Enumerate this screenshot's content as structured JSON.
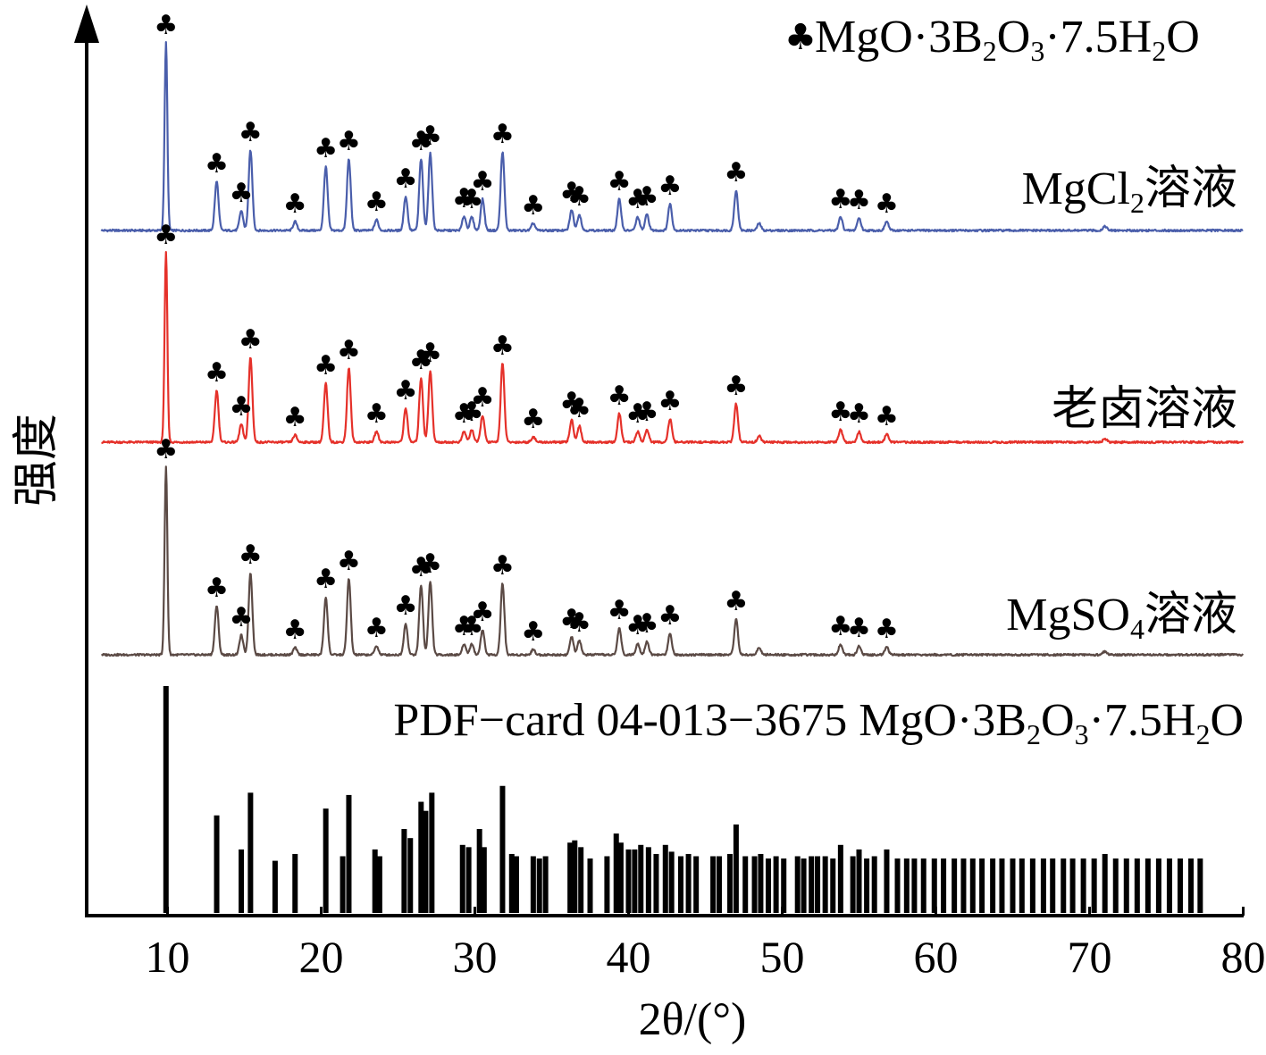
{
  "chart_data": {
    "type": "line",
    "title": "",
    "xlabel": "2θ/(°)",
    "ylabel": "强度",
    "xlim": [
      5,
      80
    ],
    "xticks": [
      10,
      20,
      30,
      40,
      50,
      60,
      70,
      80
    ],
    "xtick_labels": [
      "10",
      "20",
      "30",
      "40",
      "50",
      "60",
      "70",
      "80"
    ],
    "legend": {
      "symbol": "♣",
      "label_parts": [
        "MgO·3B",
        "2",
        "O",
        "3",
        "·7.5H",
        "2",
        "O"
      ]
    },
    "peak_marker_symbol": "♣",
    "peak_marker_2theta": [
      9.9,
      13.2,
      14.8,
      15.4,
      18.3,
      20.3,
      21.8,
      23.6,
      25.5,
      26.5,
      27.1,
      29.3,
      29.8,
      30.5,
      31.8,
      33.8,
      36.3,
      36.8,
      39.4,
      40.6,
      41.2,
      42.7,
      47.0,
      53.8,
      55.0,
      56.8
    ],
    "series": [
      {
        "name": "MgCl2溶液",
        "label_parts": [
          "MgCl",
          "2",
          "溶液"
        ],
        "color": "#4a5eab",
        "peaks": [
          [
            9.9,
            210
          ],
          [
            13.2,
            55
          ],
          [
            14.8,
            22
          ],
          [
            15.4,
            90
          ],
          [
            18.3,
            10
          ],
          [
            20.3,
            72
          ],
          [
            21.8,
            80
          ],
          [
            23.6,
            12
          ],
          [
            25.5,
            38
          ],
          [
            26.5,
            80
          ],
          [
            27.1,
            86
          ],
          [
            29.3,
            16
          ],
          [
            29.8,
            15
          ],
          [
            30.5,
            35
          ],
          [
            31.8,
            88
          ],
          [
            33.8,
            8
          ],
          [
            36.3,
            23
          ],
          [
            36.8,
            18
          ],
          [
            39.4,
            35
          ],
          [
            40.6,
            15
          ],
          [
            41.2,
            18
          ],
          [
            42.7,
            30
          ],
          [
            47.0,
            45
          ],
          [
            48.5,
            8
          ],
          [
            53.8,
            15
          ],
          [
            55.0,
            14
          ],
          [
            56.8,
            10
          ],
          [
            71.0,
            5
          ]
        ]
      },
      {
        "name": "老卤溶液",
        "label_parts": [
          "老卤溶液"
        ],
        "color": "#e5312a",
        "peaks": [
          [
            9.9,
            212
          ],
          [
            13.2,
            58
          ],
          [
            14.8,
            20
          ],
          [
            15.4,
            95
          ],
          [
            18.3,
            8
          ],
          [
            20.3,
            66
          ],
          [
            21.8,
            83
          ],
          [
            23.6,
            12
          ],
          [
            25.5,
            38
          ],
          [
            26.5,
            72
          ],
          [
            27.1,
            80
          ],
          [
            29.3,
            12
          ],
          [
            29.8,
            14
          ],
          [
            30.5,
            30
          ],
          [
            31.8,
            88
          ],
          [
            33.8,
            6
          ],
          [
            36.3,
            25
          ],
          [
            36.8,
            18
          ],
          [
            39.4,
            32
          ],
          [
            40.6,
            12
          ],
          [
            41.2,
            14
          ],
          [
            42.7,
            26
          ],
          [
            47.0,
            43
          ],
          [
            48.5,
            7
          ],
          [
            53.8,
            14
          ],
          [
            55.0,
            12
          ],
          [
            56.8,
            9
          ],
          [
            71.0,
            4
          ]
        ]
      },
      {
        "name": "MgSO4溶液",
        "label_parts": [
          "MgSO",
          "4",
          "溶液"
        ],
        "color": "#5b4a45",
        "peaks": [
          [
            9.9,
            210
          ],
          [
            13.2,
            55
          ],
          [
            14.8,
            22
          ],
          [
            15.4,
            92
          ],
          [
            18.3,
            8
          ],
          [
            20.3,
            65
          ],
          [
            21.8,
            85
          ],
          [
            23.6,
            10
          ],
          [
            25.5,
            35
          ],
          [
            26.5,
            78
          ],
          [
            27.1,
            82
          ],
          [
            29.3,
            12
          ],
          [
            29.8,
            12
          ],
          [
            30.5,
            28
          ],
          [
            31.8,
            80
          ],
          [
            33.8,
            6
          ],
          [
            36.3,
            20
          ],
          [
            36.8,
            16
          ],
          [
            39.4,
            30
          ],
          [
            40.6,
            13
          ],
          [
            41.2,
            15
          ],
          [
            42.7,
            24
          ],
          [
            47.0,
            40
          ],
          [
            48.5,
            8
          ],
          [
            53.8,
            12
          ],
          [
            55.0,
            10
          ],
          [
            56.8,
            9
          ],
          [
            71.0,
            4
          ]
        ]
      }
    ],
    "reference": {
      "name": "PDF-card 04-013-3675 MgO·3B2O3·7.5H2O",
      "label_parts": [
        "PDF−card 04-013−3675 MgO·3B",
        "2",
        "O",
        "3",
        "·7.5H",
        "2",
        "O"
      ],
      "sticks": [
        [
          9.9,
          100
        ],
        [
          13.2,
          43
        ],
        [
          14.8,
          28
        ],
        [
          15.4,
          53
        ],
        [
          17.0,
          23
        ],
        [
          18.3,
          26
        ],
        [
          20.3,
          46
        ],
        [
          21.4,
          25
        ],
        [
          21.8,
          52
        ],
        [
          23.5,
          28
        ],
        [
          23.8,
          25
        ],
        [
          25.4,
          37
        ],
        [
          25.8,
          33
        ],
        [
          26.5,
          49
        ],
        [
          26.8,
          45
        ],
        [
          27.2,
          53
        ],
        [
          29.2,
          30
        ],
        [
          29.6,
          29
        ],
        [
          30.3,
          37
        ],
        [
          30.6,
          29
        ],
        [
          31.8,
          56
        ],
        [
          32.4,
          26
        ],
        [
          32.7,
          25
        ],
        [
          33.8,
          25
        ],
        [
          34.2,
          24
        ],
        [
          34.6,
          25
        ],
        [
          36.2,
          31
        ],
        [
          36.5,
          32
        ],
        [
          36.9,
          29
        ],
        [
          37.5,
          24
        ],
        [
          38.6,
          25
        ],
        [
          39.2,
          35
        ],
        [
          39.5,
          31
        ],
        [
          40.0,
          28
        ],
        [
          40.4,
          28
        ],
        [
          40.8,
          30
        ],
        [
          41.3,
          29
        ],
        [
          41.8,
          26
        ],
        [
          42.4,
          30
        ],
        [
          42.8,
          27
        ],
        [
          43.4,
          25
        ],
        [
          43.9,
          26
        ],
        [
          44.4,
          25
        ],
        [
          45.5,
          25
        ],
        [
          45.9,
          25
        ],
        [
          46.6,
          26
        ],
        [
          47.0,
          39
        ],
        [
          47.6,
          25
        ],
        [
          48.2,
          25
        ],
        [
          48.6,
          26
        ],
        [
          49.1,
          24
        ],
        [
          49.6,
          25
        ],
        [
          50.1,
          24
        ],
        [
          51.0,
          25
        ],
        [
          51.4,
          24
        ],
        [
          51.9,
          25
        ],
        [
          52.3,
          25
        ],
        [
          52.8,
          25
        ],
        [
          53.3,
          24
        ],
        [
          53.8,
          30
        ],
        [
          54.6,
          25
        ],
        [
          55.0,
          28
        ],
        [
          55.5,
          24
        ],
        [
          56.0,
          25
        ],
        [
          56.8,
          28
        ],
        [
          57.5,
          24
        ],
        [
          58.1,
          24
        ],
        [
          58.6,
          24
        ],
        [
          59.2,
          24
        ],
        [
          59.9,
          24
        ],
        [
          60.5,
          24
        ],
        [
          61.2,
          24
        ],
        [
          61.8,
          24
        ],
        [
          62.4,
          24
        ],
        [
          63.0,
          24
        ],
        [
          63.7,
          24
        ],
        [
          64.3,
          24
        ],
        [
          65.0,
          24
        ],
        [
          65.6,
          24
        ],
        [
          66.3,
          24
        ],
        [
          67.0,
          24
        ],
        [
          67.6,
          24
        ],
        [
          68.3,
          24
        ],
        [
          68.9,
          24
        ],
        [
          69.6,
          24
        ],
        [
          70.3,
          24
        ],
        [
          71.0,
          26
        ],
        [
          71.7,
          24
        ],
        [
          72.4,
          24
        ],
        [
          73.1,
          24
        ],
        [
          73.8,
          24
        ],
        [
          74.5,
          24
        ],
        [
          75.2,
          24
        ],
        [
          75.9,
          24
        ],
        [
          76.6,
          24
        ],
        [
          77.2,
          24
        ]
      ]
    }
  }
}
